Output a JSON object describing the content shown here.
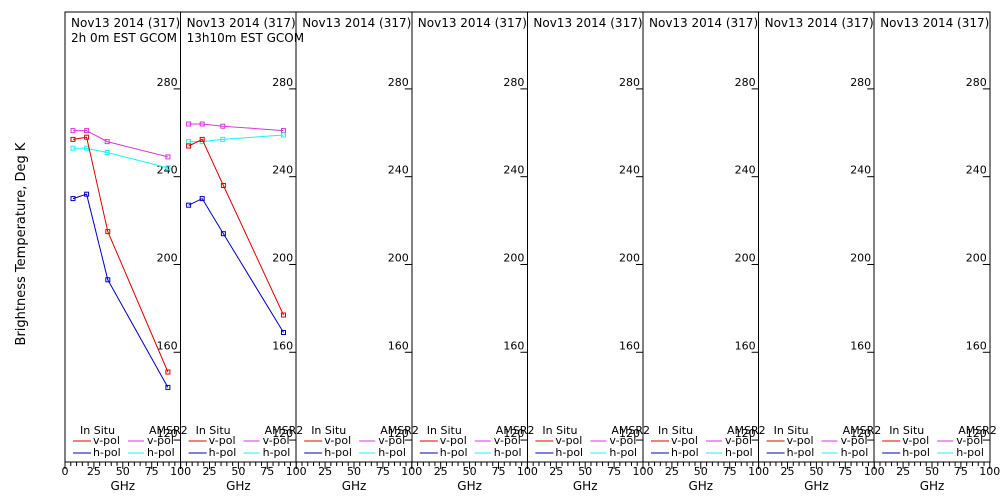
{
  "figure": {
    "ylabel": "Brightness Temperature, Deg K",
    "xlabel": "GHz"
  },
  "legend": {
    "left_header": "In Situ",
    "right_header": "AMSR2",
    "vpol": "v-pol",
    "hpol": "h-pol"
  },
  "colors": {
    "insitu_v": "#dd0000",
    "insitu_h": "#0000bb",
    "amsr2_v": "#dd33dd",
    "amsr2_h": "#22eeee",
    "frame": "#000000"
  },
  "chart_data": {
    "type": "line",
    "ylim": [
      110,
      300
    ],
    "xlim": [
      0,
      100
    ],
    "yticks": [
      120,
      160,
      200,
      240,
      280
    ],
    "ytick_labels": [
      "120",
      "160",
      "200",
      "240",
      "280"
    ],
    "xticks": [
      0,
      25,
      50,
      75,
      100
    ],
    "xtick_labels": [
      "0",
      "25",
      "50",
      "75",
      "100"
    ],
    "panels": [
      {
        "title": "Nov13 2014 (317)",
        "subtitle": "2h 0m EST GCOM",
        "series": [
          {
            "key": "amsr2_v",
            "x": [
              6.9,
              18.7,
              36.5,
              89.0
            ],
            "y": [
              261,
              261,
              256,
              249
            ]
          },
          {
            "key": "amsr2_h",
            "x": [
              6.9,
              18.7,
              36.5,
              89.0
            ],
            "y": [
              253,
              253,
              251,
              244
            ]
          },
          {
            "key": "insitu_v",
            "x": [
              6.9,
              18.7,
              37.0,
              89.0
            ],
            "y": [
              257,
              258,
              215,
              151
            ]
          },
          {
            "key": "insitu_h",
            "x": [
              6.9,
              18.7,
              37.0,
              89.0
            ],
            "y": [
              230,
              232,
              193,
              144
            ]
          }
        ]
      },
      {
        "title": "Nov13 2014 (317)",
        "subtitle": "13h10m EST GCOM",
        "series": [
          {
            "key": "amsr2_v",
            "x": [
              6.9,
              18.7,
              36.5,
              89.0
            ],
            "y": [
              264,
              264,
              263,
              261
            ]
          },
          {
            "key": "amsr2_h",
            "x": [
              6.9,
              18.7,
              36.5,
              89.0
            ],
            "y": [
              256,
              256,
              257,
              259
            ]
          },
          {
            "key": "insitu_v",
            "x": [
              6.9,
              18.7,
              37.0,
              89.0
            ],
            "y": [
              254,
              257,
              236,
              177
            ]
          },
          {
            "key": "insitu_h",
            "x": [
              6.9,
              18.7,
              37.0,
              89.0
            ],
            "y": [
              227,
              230,
              214,
              169
            ]
          }
        ]
      },
      {
        "title": "Nov13 2014 (317)",
        "subtitle": "",
        "series": []
      },
      {
        "title": "Nov13 2014 (317)",
        "subtitle": "",
        "series": []
      },
      {
        "title": "Nov13 2014 (317)",
        "subtitle": "",
        "series": []
      },
      {
        "title": "Nov13 2014 (317)",
        "subtitle": "",
        "series": []
      },
      {
        "title": "Nov13 2014 (317)",
        "subtitle": "",
        "series": []
      },
      {
        "title": "Nov13 2014 (317)",
        "subtitle": "",
        "series": []
      }
    ]
  }
}
